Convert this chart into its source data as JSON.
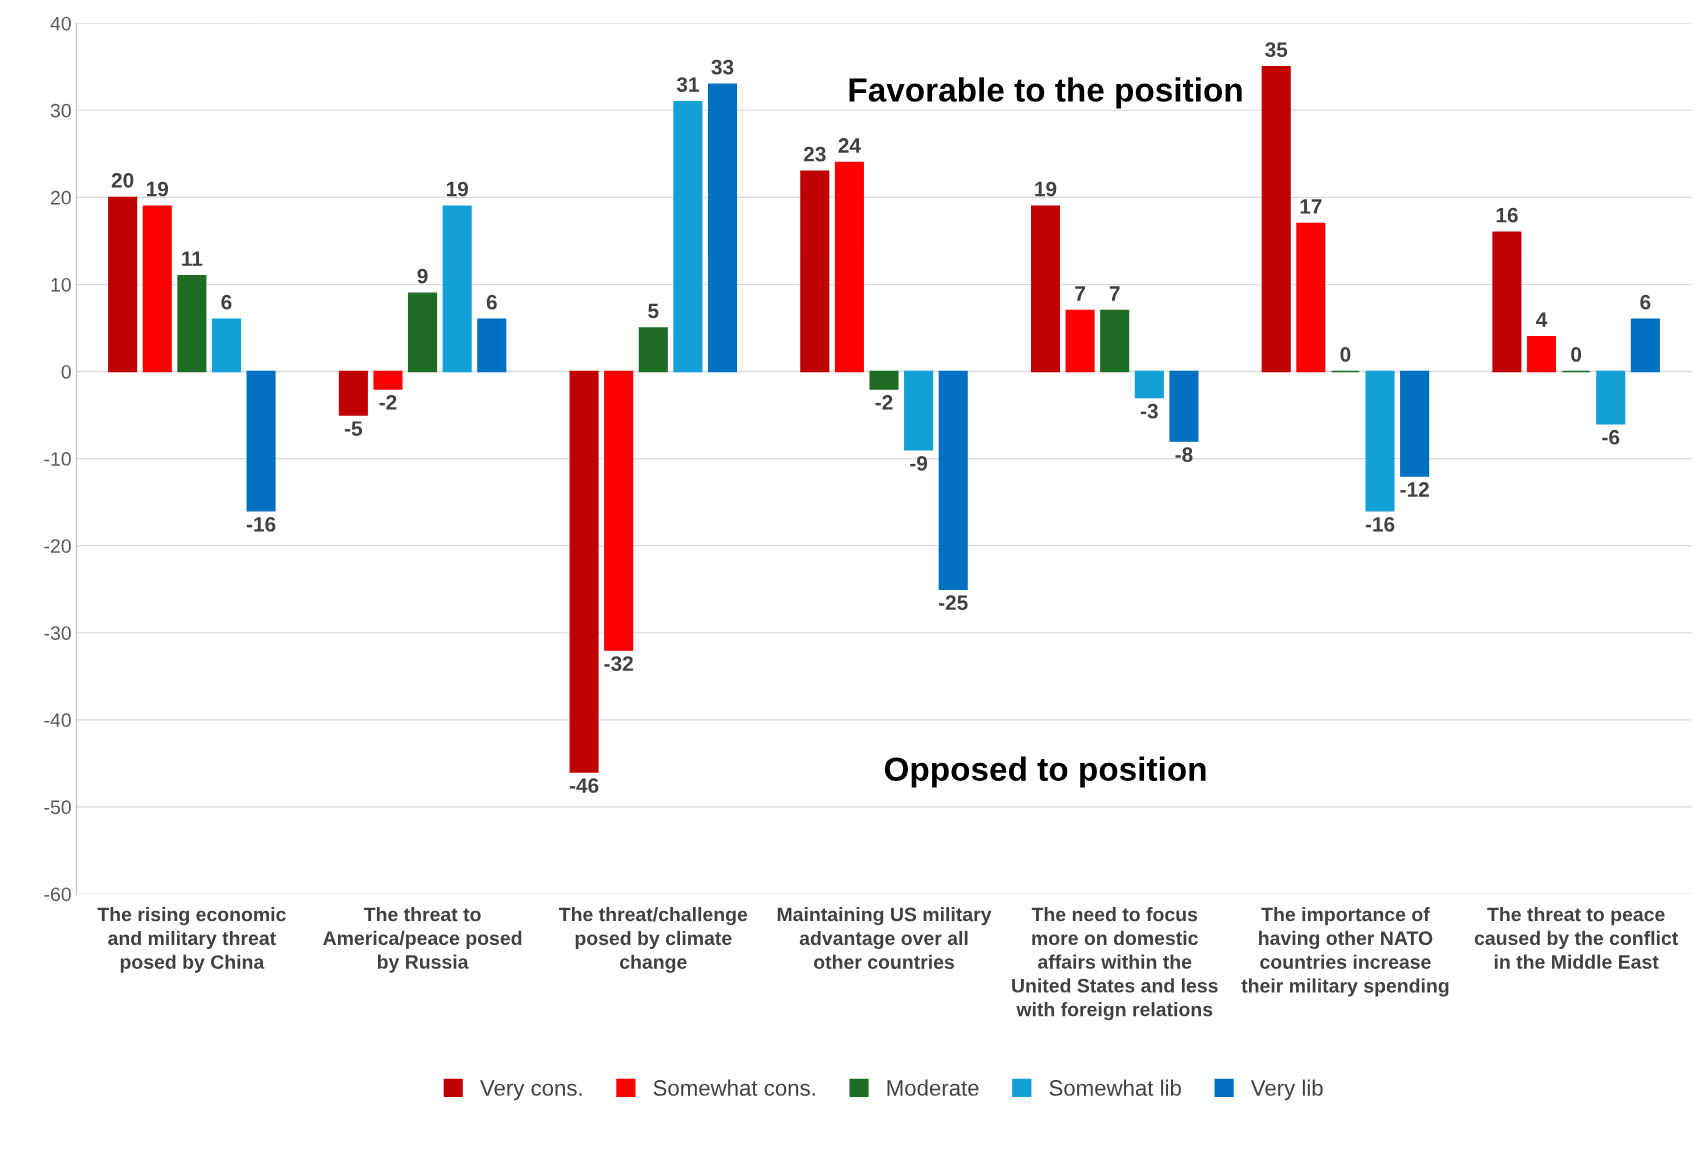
{
  "chart_data": {
    "type": "bar",
    "categories": [
      "The rising economic and military threat posed by China",
      "The threat to America/peace posed by Russia",
      "The threat/challenge posed by climate change",
      "Maintaining US military advantage over all other countries",
      "The need to focus more on domestic affairs within the United States and less with foreign relations",
      "The importance of having other NATO countries increase their military spending",
      "The threat to peace caused by the conflict in the Middle East"
    ],
    "series": [
      {
        "name": "Very cons.",
        "color": "#c00000",
        "values": [
          20,
          -5,
          -46,
          23,
          19,
          35,
          16
        ]
      },
      {
        "name": "Somewhat cons.",
        "color": "#ff0000",
        "values": [
          19,
          -2,
          -32,
          24,
          7,
          17,
          4
        ]
      },
      {
        "name": "Moderate",
        "color": "#1e6b24",
        "values": [
          11,
          9,
          5,
          -2,
          7,
          0,
          0
        ]
      },
      {
        "name": "Somewhat lib",
        "color": "#12a0d7",
        "values": [
          6,
          19,
          31,
          -9,
          -3,
          -16,
          -6
        ]
      },
      {
        "name": "Very lib",
        "color": "#0070c0",
        "values": [
          -16,
          6,
          33,
          -25,
          -8,
          -12,
          6
        ]
      }
    ],
    "annotations": [
      "Favorable to the position",
      "Opposed to position"
    ],
    "ylim": [
      -60,
      40
    ],
    "yticks": [
      -60,
      -50,
      -40,
      -30,
      -20,
      -10,
      0,
      10,
      20,
      30,
      40
    ],
    "grid": "y",
    "legend": "bottom",
    "data_labels": true
  }
}
